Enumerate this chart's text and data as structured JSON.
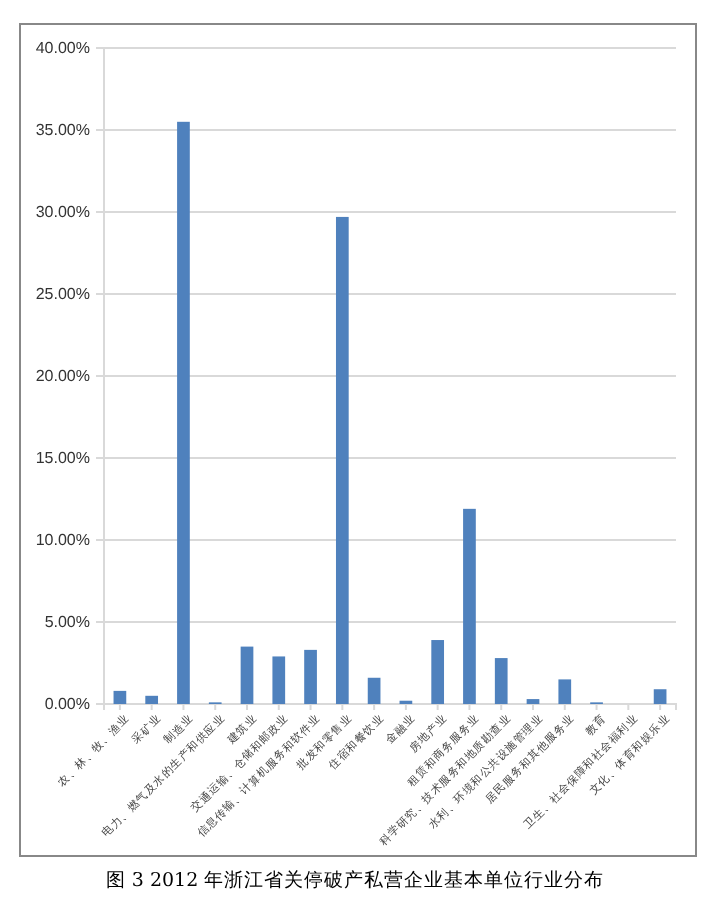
{
  "chart_data": {
    "type": "bar",
    "title": "图 3 2012 年浙江省关停破产私营企业基本单位行业分布",
    "categories": [
      "农、林、牧、渔业",
      "采矿业",
      "制造业",
      "电力、燃气及水的生产和供应业",
      "建筑业",
      "交通运输、仓储和邮政业",
      "信息传输、计算机服务和软件业",
      "批发和零售业",
      "住宿和餐饮业",
      "金融业",
      "房地产业",
      "租赁和商务服务业",
      "科学研究、技术服务和地质勘查业",
      "水利、环境和公共设施管理业",
      "居民服务和其他服务业",
      "教育",
      "卫生、社会保障和社会福利业",
      "文化、体育和娱乐业"
    ],
    "values": [
      0.8,
      0.5,
      35.5,
      0.1,
      3.5,
      2.9,
      3.3,
      29.7,
      1.6,
      0.2,
      3.9,
      11.9,
      2.8,
      0.3,
      1.5,
      0.1,
      0,
      0.9
    ],
    "color": "#4f81bd",
    "ylim": [
      0,
      40
    ],
    "yticks": [
      {
        "value": 0,
        "label": "0.00%"
      },
      {
        "value": 5,
        "label": "5.00%"
      },
      {
        "value": 10,
        "label": "10.00%"
      },
      {
        "value": 15,
        "label": "15.00%"
      },
      {
        "value": 20,
        "label": "20.00%"
      },
      {
        "value": 25,
        "label": "25.00%"
      },
      {
        "value": 30,
        "label": "30.00%"
      },
      {
        "value": 35,
        "label": "35.00%"
      },
      {
        "value": 40,
        "label": "40.00%"
      }
    ],
    "grid": "y"
  }
}
